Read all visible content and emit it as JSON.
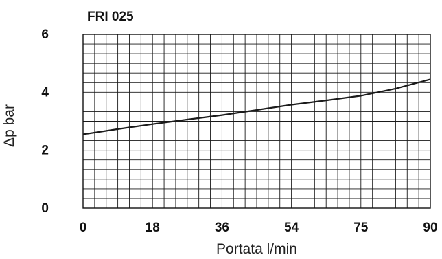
{
  "chart_data": {
    "type": "line",
    "title": "FRI 025",
    "xlabel": "Portata l/min",
    "ylabel": "Δp bar",
    "xlim": [
      0,
      90
    ],
    "ylim": [
      0,
      6
    ],
    "x_ticks": [
      "0",
      "18",
      "36",
      "54",
      "75",
      "90"
    ],
    "y_ticks": [
      "0",
      "2",
      "4",
      "6"
    ],
    "grid": true,
    "series": [
      {
        "x": [
          0,
          9,
          18,
          27,
          36,
          45,
          54,
          63,
          72,
          81,
          90
        ],
        "values": [
          2.55,
          2.73,
          2.9,
          3.06,
          3.21,
          3.39,
          3.57,
          3.72,
          3.88,
          4.13,
          4.45
        ]
      }
    ]
  }
}
